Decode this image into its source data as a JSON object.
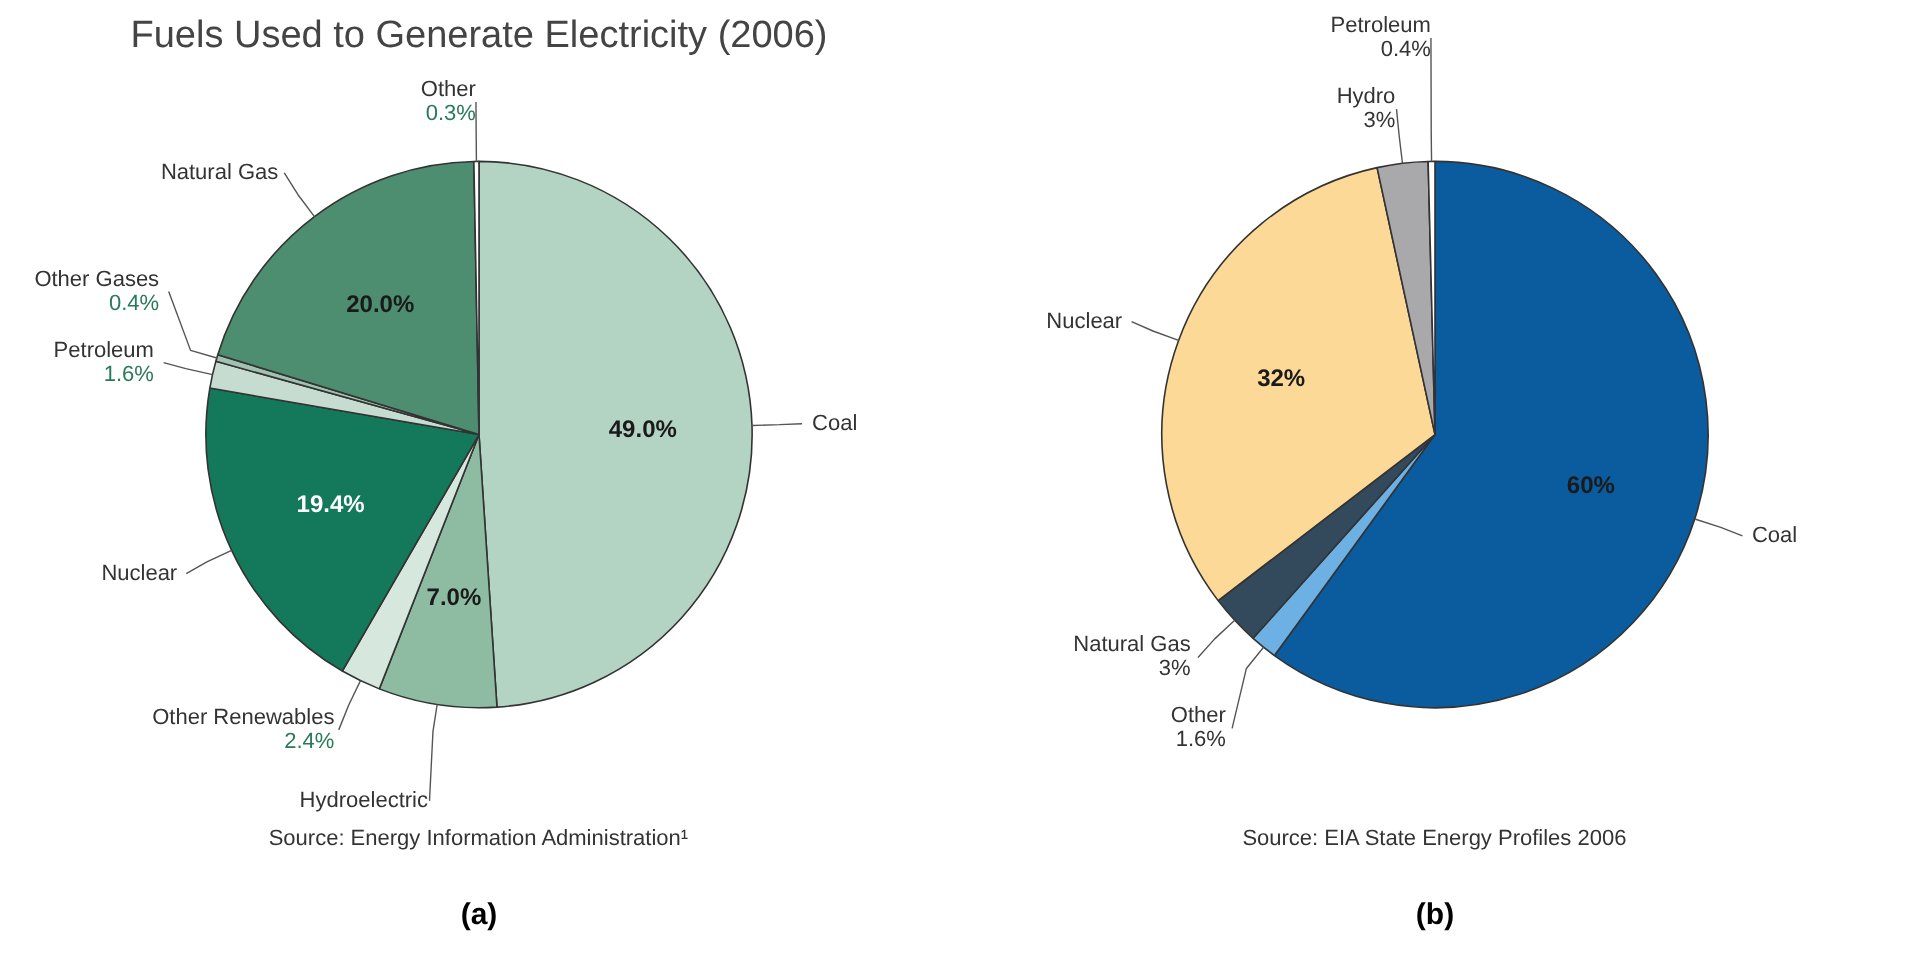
{
  "chart_data": [
    {
      "type": "pie",
      "title": "Fuels Used to Generate Electricity (2006)",
      "categories": [
        "Coal",
        "Hydroelectric",
        "Other Renewables",
        "Nuclear",
        "Petroleum",
        "Other Gases",
        "Natural Gas",
        "Other"
      ],
      "values": [
        49.0,
        7.0,
        2.4,
        19.4,
        1.6,
        0.4,
        20.0,
        0.3
      ],
      "value_labels": [
        "49.0%",
        "7.0%",
        "2.4%",
        "19.4%",
        "1.6%",
        "0.4%",
        "20.0%",
        "0.3%"
      ],
      "colors": [
        "#b3d3c3",
        "#8dbca3",
        "#d6e7de",
        "#14785a",
        "#c7dcd1",
        "#9fc2b1",
        "#4e8e70",
        "#ffffff"
      ],
      "annotations": [
        "Source: Energy Information Administration¹",
        "(a)"
      ]
    },
    {
      "type": "pie",
      "categories": [
        "Coal",
        "Other",
        "Natural Gas",
        "Nuclear",
        "Hydro",
        "Petroleum"
      ],
      "values": [
        60,
        1.6,
        3,
        32,
        3,
        0.4
      ],
      "value_labels": [
        "60%",
        "1.6%",
        "3%",
        "32%",
        "3%",
        "0.4%"
      ],
      "colors": [
        "#0a5c9e",
        "#6db0e3",
        "#33495c",
        "#fcd996",
        "#a9a9ab",
        "#ffffff"
      ],
      "annotations": [
        "Source: EIA State Energy Profiles 2006",
        "(b)"
      ]
    }
  ]
}
